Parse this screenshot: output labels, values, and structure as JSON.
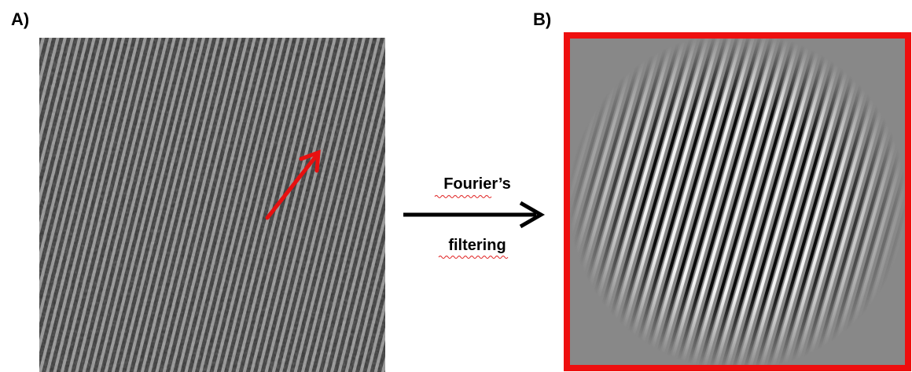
{
  "panels": [
    {
      "label": "A)"
    },
    {
      "label": "B)"
    }
  ],
  "arrow": {
    "lines": [
      "Fourier’s",
      "filtering"
    ]
  }
}
